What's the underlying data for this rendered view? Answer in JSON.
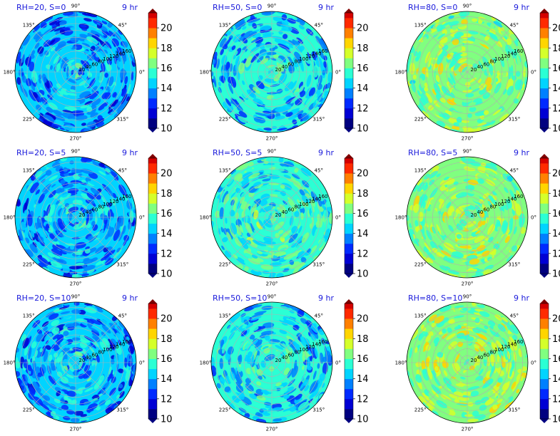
{
  "chart_data": {
    "type": "heatmap",
    "projection": "polar",
    "layout": {
      "rows": 3,
      "cols": 3
    },
    "angular_ticks": [
      "0°",
      "45°",
      "90°",
      "135°",
      "180°",
      "225°",
      "270°",
      "315°"
    ],
    "radial_ticks": [
      "20",
      "40",
      "60",
      "80",
      "100",
      "120",
      "140",
      "160"
    ],
    "rmax": 175,
    "colorbar": {
      "min": 10,
      "max": 21.5,
      "step": 1,
      "ticks": [
        "10",
        "12",
        "14",
        "16",
        "18",
        "20"
      ],
      "extend": "both",
      "colormap": "jet"
    },
    "grid": true,
    "panels": [
      {
        "title": "RH=20, S=0",
        "time": "9 hr",
        "mean_value": 14.2,
        "spread": 2.0
      },
      {
        "title": "RH=50, S=0",
        "time": "9 hr",
        "mean_value": 15.0,
        "spread": 1.8
      },
      {
        "title": "RH=80, S=0",
        "time": "9 hr",
        "mean_value": 16.8,
        "spread": 1.6
      },
      {
        "title": "RH=20, S=5",
        "time": "9 hr",
        "mean_value": 14.5,
        "spread": 2.0
      },
      {
        "title": "RH=50, S=5",
        "time": "9 hr",
        "mean_value": 15.5,
        "spread": 1.7
      },
      {
        "title": "RH=80, S=5",
        "time": "9 hr",
        "mean_value": 16.8,
        "spread": 1.6
      },
      {
        "title": "RH=20, S=10",
        "time": "9 hr",
        "mean_value": 14.5,
        "spread": 2.1
      },
      {
        "title": "RH=50, S=10",
        "time": "9 hr",
        "mean_value": 15.3,
        "spread": 1.8
      },
      {
        "title": "RH=80, S=10",
        "time": "9 hr",
        "mean_value": 16.9,
        "spread": 1.6
      }
    ]
  }
}
